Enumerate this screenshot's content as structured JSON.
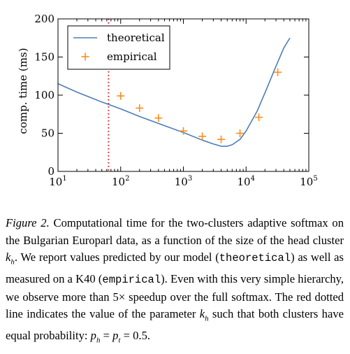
{
  "chart_data": {
    "type": "line",
    "xscale": "log",
    "xlim": [
      10,
      100000
    ],
    "ylim": [
      0,
      200
    ],
    "ylabel": "comp. time (ms)",
    "xticks": [
      {
        "value": 10,
        "base": "10",
        "exp": "1"
      },
      {
        "value": 100,
        "base": "10",
        "exp": "2"
      },
      {
        "value": 1000,
        "base": "10",
        "exp": "3"
      },
      {
        "value": 10000,
        "base": "10",
        "exp": "4"
      },
      {
        "value": 100000,
        "base": "10",
        "exp": "5"
      }
    ],
    "yticks": [
      "0",
      "50",
      "100",
      "150",
      "200"
    ],
    "legend_position": "top-left",
    "series": [
      {
        "name": "theoretical",
        "kind": "line",
        "color": "#4c7db7",
        "x": [
          10,
          20,
          50,
          100,
          200,
          500,
          1000,
          2000,
          3000,
          4000,
          5000,
          6000,
          8000,
          10000,
          15000,
          20000,
          30000,
          40000,
          50000
        ],
        "y": [
          115,
          104,
          91,
          82,
          72,
          60,
          51,
          41,
          36,
          33,
          33,
          35,
          42,
          53,
          79,
          103,
          138,
          162,
          175
        ]
      },
      {
        "name": "empirical",
        "kind": "scatter",
        "color": "#ff8c1a",
        "x": [
          100,
          200,
          400,
          1000,
          2000,
          4000,
          8000,
          16000,
          32000
        ],
        "y": [
          99,
          83,
          70,
          53,
          46,
          42,
          50,
          71,
          130
        ]
      }
    ],
    "vline": {
      "x": 64,
      "color": "#e0202a",
      "style": "dotted"
    }
  },
  "caption": {
    "label": "Figure 2.",
    "t1": " Computational time for the two-clusters adaptive softmax on the Bulgarian Europarl data, as a function of the size of the head cluster ",
    "kh_main": "k",
    "kh_sub": "h",
    "t2": ". We report values predicted by our model (",
    "mono1": "theoretical",
    "t3": ") as well as measured on a K40 (",
    "mono2": "empirical",
    "t4": "). Even with this very simple hierarchy, we observe more than 5× speedup over the full softmax. The red dotted line indicates the value of the parameter ",
    "kh2_main": "k",
    "kh2_sub": "h",
    "t5": " such that both clusters have equal probability: ",
    "eq_ph": "p",
    "eq_ph_sub": "h",
    "eq_mid": " = ",
    "eq_pt": "p",
    "eq_pt_sub": "t",
    "eq_end": " = 0.5."
  }
}
